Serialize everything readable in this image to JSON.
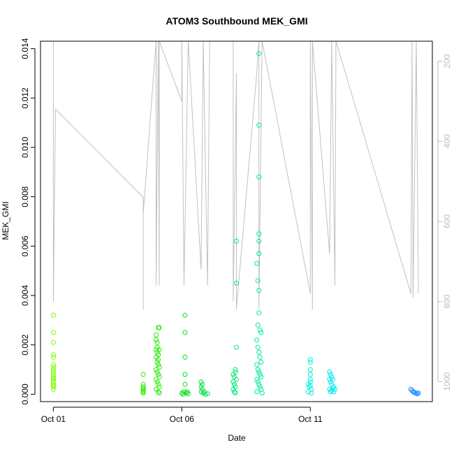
{
  "chart_data": {
    "type": "scatter",
    "title": "ATOM3 Southbound MEK_GMI",
    "xlabel": "Date",
    "ylabel": "MEK_GMI",
    "x_axis": {
      "type": "date",
      "range": [
        "2023-09-30T12:00",
        "2023-10-15T18:00"
      ],
      "ticks": [
        {
          "label": "Oct 01",
          "value": "2023-10-01T00:00"
        },
        {
          "label": "Oct 06",
          "value": "2023-10-06T00:00"
        },
        {
          "label": "Oct 11",
          "value": "2023-10-11T00:00"
        }
      ]
    },
    "y_left": {
      "range": [
        -0.0003,
        0.0143
      ],
      "ticks": [
        0.0,
        0.002,
        0.004,
        0.006,
        0.008,
        0.01,
        0.012,
        0.014
      ],
      "tick_labels": [
        "0.000",
        "0.002",
        "0.004",
        "0.006",
        "0.008",
        "0.010",
        "0.012",
        "0.014"
      ]
    },
    "y_right": {
      "range": [
        1050,
        150
      ],
      "reversed": true,
      "color": "#bdbdbd",
      "ticks": [
        200,
        400,
        600,
        800,
        1000
      ],
      "tick_labels": [
        "200",
        "400",
        "600",
        "800",
        "1000"
      ]
    },
    "grid": false,
    "series": [
      {
        "marker": "open-circle",
        "color": "#7cfc00",
        "points": [
          [
            "2023-10-01T00:00",
            0.0032
          ],
          [
            "2023-10-01T00:00",
            0.0025
          ],
          [
            "2023-10-01T00:00",
            0.0021
          ],
          [
            "2023-10-01T00:05",
            0.0016
          ],
          [
            "2023-10-01T00:05",
            0.0015
          ],
          [
            "2023-10-01T00:10",
            0.0012
          ],
          [
            "2023-10-01T00:05",
            0.0011
          ],
          [
            "2023-10-01T00:10",
            0.001
          ],
          [
            "2023-10-01T00:00",
            0.0009
          ],
          [
            "2023-10-01T00:05",
            0.0008
          ],
          [
            "2023-10-01T00:05",
            0.0007
          ],
          [
            "2023-10-01T00:10",
            0.0006
          ],
          [
            "2023-10-01T00:00",
            0.0005
          ],
          [
            "2023-10-01T00:05",
            0.0004
          ],
          [
            "2023-10-01T00:10",
            0.0003
          ],
          [
            "2023-10-01T00:05",
            0.0002
          ],
          [
            "2023-10-01T00:10",
            0.00035
          ],
          [
            "2023-10-01T00:00",
            0.00065
          ]
        ]
      },
      {
        "marker": "open-circle",
        "color": "#33ee00",
        "points": [
          [
            "2023-10-04T12:00",
            0.0008
          ],
          [
            "2023-10-04T12:00",
            0.0004
          ],
          [
            "2023-10-04T12:00",
            0.0003
          ],
          [
            "2023-10-04T12:00",
            0.0002
          ],
          [
            "2023-10-04T12:00",
            0.0001
          ],
          [
            "2023-10-04T12:00",
            5e-05
          ],
          [
            "2023-10-04T12:00",
            0.00025
          ],
          [
            "2023-10-04T12:00",
            0.00015
          ]
        ]
      },
      {
        "marker": "open-circle",
        "color": "#22ee00",
        "points": [
          [
            "2023-10-05T00:00",
            0.0024
          ],
          [
            "2023-10-05T00:00",
            0.0022
          ],
          [
            "2023-10-05T01:00",
            0.0021
          ],
          [
            "2023-10-05T02:00",
            0.0027
          ],
          [
            "2023-10-05T03:00",
            0.0027
          ],
          [
            "2023-10-05T00:00",
            0.0018
          ],
          [
            "2023-10-05T01:00",
            0.0017
          ],
          [
            "2023-10-05T02:00",
            0.0016
          ],
          [
            "2023-10-05T03:00",
            0.0018
          ],
          [
            "2023-10-05T00:00",
            0.0015
          ],
          [
            "2023-10-05T01:00",
            0.0013
          ],
          [
            "2023-10-05T02:00",
            0.0012
          ],
          [
            "2023-10-05T03:00",
            0.0011
          ],
          [
            "2023-10-05T00:00",
            0.001
          ],
          [
            "2023-10-05T01:00",
            0.0009
          ],
          [
            "2023-10-05T02:00",
            0.0008
          ],
          [
            "2023-10-05T03:00",
            0.0007
          ],
          [
            "2023-10-05T00:00",
            0.0006
          ],
          [
            "2023-10-05T01:00",
            0.0005
          ],
          [
            "2023-10-05T02:00",
            0.0004
          ],
          [
            "2023-10-05T03:00",
            0.0003
          ],
          [
            "2023-10-05T00:00",
            0.0002
          ],
          [
            "2023-10-05T02:00",
            0.0001
          ],
          [
            "2023-10-05T03:00",
            5e-05
          ],
          [
            "2023-10-05T01:00",
            0.0019
          ],
          [
            "2023-10-05T02:00",
            0.0014
          ]
        ]
      },
      {
        "marker": "open-circle",
        "color": "#00e020",
        "points": [
          [
            "2023-10-06T03:00",
            0.0032
          ],
          [
            "2023-10-06T03:00",
            0.0025
          ],
          [
            "2023-10-06T03:00",
            0.0015
          ],
          [
            "2023-10-06T03:00",
            0.0008
          ],
          [
            "2023-10-06T03:00",
            0.0004
          ],
          [
            "2023-10-06T00:00",
            5e-05
          ],
          [
            "2023-10-06T01:00",
            0.0
          ],
          [
            "2023-10-06T02:00",
            0.0001
          ],
          [
            "2023-10-06T04:00",
            5e-05
          ],
          [
            "2023-10-06T05:00",
            0.0001
          ],
          [
            "2023-10-06T06:00",
            2e-05
          ]
        ]
      },
      {
        "marker": "open-circle",
        "color": "#00e040",
        "points": [
          [
            "2023-10-06T18:00",
            0.0005
          ],
          [
            "2023-10-06T19:00",
            0.0004
          ],
          [
            "2023-10-06T18:00",
            0.0003
          ],
          [
            "2023-10-06T19:00",
            0.0002
          ],
          [
            "2023-10-06T18:00",
            0.0001
          ],
          [
            "2023-10-06T20:00",
            5e-05
          ],
          [
            "2023-10-06T22:00",
            0.0
          ],
          [
            "2023-10-07T00:00",
            2e-05
          ],
          [
            "2023-10-06T21:00",
            0.0001
          ]
        ]
      },
      {
        "marker": "open-circle",
        "color": "#00e878",
        "points": [
          [
            "2023-10-08T00:00",
            0.0008
          ],
          [
            "2023-10-08T01:00",
            0.0007
          ],
          [
            "2023-10-08T02:00",
            0.001
          ],
          [
            "2023-10-08T03:00",
            0.0019
          ],
          [
            "2023-10-08T03:00",
            0.0045
          ],
          [
            "2023-10-08T03:00",
            0.0062
          ],
          [
            "2023-10-08T00:00",
            0.0005
          ],
          [
            "2023-10-08T01:00",
            0.0004
          ],
          [
            "2023-10-08T02:00",
            0.0003
          ],
          [
            "2023-10-08T00:00",
            0.0002
          ],
          [
            "2023-10-08T01:00",
            0.0001
          ],
          [
            "2023-10-08T02:00",
            5e-05
          ],
          [
            "2023-10-08T03:00",
            0.0006
          ],
          [
            "2023-10-08T02:00",
            0.0009
          ]
        ]
      },
      {
        "marker": "open-circle",
        "color": "#00e8a0",
        "points": [
          [
            "2023-10-09T00:00",
            0.0138
          ],
          [
            "2023-10-09T00:00",
            0.0109
          ],
          [
            "2023-10-09T00:00",
            0.0088
          ],
          [
            "2023-10-09T00:00",
            0.0065
          ],
          [
            "2023-10-09T00:00",
            0.0062
          ],
          [
            "2023-10-09T00:00",
            0.0057
          ],
          [
            "2023-10-08T22:00",
            0.0053
          ],
          [
            "2023-10-08T23:00",
            0.0046
          ],
          [
            "2023-10-09T00:00",
            0.0042
          ],
          [
            "2023-10-09T00:00",
            0.0033
          ],
          [
            "2023-10-08T23:00",
            0.0028
          ],
          [
            "2023-10-09T01:00",
            0.0026
          ],
          [
            "2023-10-09T02:00",
            0.0025
          ],
          [
            "2023-10-08T22:00",
            0.0022
          ],
          [
            "2023-10-08T23:00",
            0.0019
          ],
          [
            "2023-10-09T00:00",
            0.0017
          ],
          [
            "2023-10-09T01:00",
            0.0015
          ],
          [
            "2023-10-09T02:00",
            0.0013
          ],
          [
            "2023-10-08T22:00",
            0.0012
          ],
          [
            "2023-10-08T23:00",
            0.001
          ],
          [
            "2023-10-09T00:00",
            0.0009
          ],
          [
            "2023-10-09T01:00",
            0.0008
          ],
          [
            "2023-10-09T02:00",
            0.0007
          ],
          [
            "2023-10-08T22:00",
            0.0006
          ],
          [
            "2023-10-08T23:00",
            0.0005
          ],
          [
            "2023-10-09T00:00",
            0.0004
          ],
          [
            "2023-10-09T01:00",
            0.0003
          ],
          [
            "2023-10-09T02:00",
            0.0002
          ],
          [
            "2023-10-08T22:00",
            0.0001
          ],
          [
            "2023-10-09T03:00",
            5e-05
          ]
        ]
      },
      {
        "marker": "open-circle",
        "color": "#00f0e0",
        "points": [
          [
            "2023-10-11T00:00",
            0.0014
          ],
          [
            "2023-10-11T00:00",
            0.0013
          ],
          [
            "2023-10-11T00:00",
            0.001
          ],
          [
            "2023-10-11T00:00",
            0.0008
          ],
          [
            "2023-10-11T00:00",
            0.0006
          ],
          [
            "2023-10-11T00:00",
            0.0005
          ],
          [
            "2023-10-10T22:00",
            0.0004
          ],
          [
            "2023-10-10T23:00",
            0.0003
          ],
          [
            "2023-10-11T01:00",
            0.0002
          ],
          [
            "2023-10-10T22:00",
            0.0001
          ],
          [
            "2023-10-11T01:00",
            5e-05
          ],
          [
            "2023-10-11T00:00",
            0.00035
          ]
        ]
      },
      {
        "marker": "open-circle",
        "color": "#00e8f0",
        "points": [
          [
            "2023-10-11T18:00",
            0.0009
          ],
          [
            "2023-10-11T19:00",
            0.0008
          ],
          [
            "2023-10-11T20:00",
            0.0007
          ],
          [
            "2023-10-11T18:00",
            0.0006
          ],
          [
            "2023-10-11T19:00",
            0.0005
          ],
          [
            "2023-10-11T20:00",
            0.0004
          ],
          [
            "2023-10-11T21:00",
            0.0006
          ],
          [
            "2023-10-11T22:00",
            0.0003
          ],
          [
            "2023-10-11T18:00",
            0.0002
          ],
          [
            "2023-10-11T19:00",
            0.0001
          ],
          [
            "2023-10-11T20:00",
            0.00015
          ],
          [
            "2023-10-11T21:00",
            0.00025
          ],
          [
            "2023-10-11T22:00",
            0.0001
          ],
          [
            "2023-10-11T23:00",
            0.0002
          ]
        ]
      },
      {
        "marker": "open-circle",
        "color": "#1e90ff",
        "points": [
          [
            "2023-10-14T22:00",
            0.0002
          ],
          [
            "2023-10-14T23:00",
            0.00015
          ],
          [
            "2023-10-15T00:00",
            0.0001
          ],
          [
            "2023-10-15T01:00",
            8e-05
          ],
          [
            "2023-10-15T02:00",
            5e-05
          ],
          [
            "2023-10-15T03:00",
            3e-05
          ],
          [
            "2023-10-15T04:00",
            2e-05
          ],
          [
            "2023-10-15T05:00",
            5e-05
          ]
        ]
      }
    ],
    "secondary_line": {
      "color": "#c0c0c0",
      "axis": "right",
      "points": [
        [
          "2023-10-01T00:00",
          500
        ],
        [
          "2023-10-01T00:00",
          150
        ],
        [
          "2023-10-01T00:00",
          800
        ],
        [
          "2023-10-01T02:00",
          320
        ],
        [
          "2023-10-04T12:00",
          540
        ],
        [
          "2023-10-04T12:00",
          820
        ],
        [
          "2023-10-04T12:00",
          580
        ],
        [
          "2023-10-05T00:00",
          150
        ],
        [
          "2023-10-05T00:00",
          760
        ],
        [
          "2023-10-05T02:00",
          150
        ],
        [
          "2023-10-05T03:00",
          760
        ],
        [
          "2023-10-05T03:00",
          150
        ],
        [
          "2023-10-06T00:00",
          300
        ],
        [
          "2023-10-06T00:00",
          150
        ],
        [
          "2023-10-06T02:00",
          760
        ],
        [
          "2023-10-06T06:00",
          150
        ],
        [
          "2023-10-06T18:00",
          720
        ],
        [
          "2023-10-06T20:00",
          150
        ],
        [
          "2023-10-07T00:00",
          760
        ],
        [
          "2023-10-07T02:00",
          150
        ],
        [
          "2023-10-08T00:00",
          150
        ],
        [
          "2023-10-08T00:00",
          800
        ],
        [
          "2023-10-08T03:00",
          230
        ],
        [
          "2023-10-08T03:00",
          820
        ],
        [
          "2023-10-08T22:00",
          230
        ],
        [
          "2023-10-09T00:00",
          150
        ],
        [
          "2023-10-09T00:00",
          820
        ],
        [
          "2023-10-09T03:00",
          150
        ],
        [
          "2023-10-11T00:00",
          780
        ],
        [
          "2023-10-11T00:00",
          150
        ],
        [
          "2023-10-11T02:00",
          820
        ],
        [
          "2023-10-11T02:00",
          150
        ],
        [
          "2023-10-11T18:00",
          680
        ],
        [
          "2023-10-11T20:00",
          150
        ],
        [
          "2023-10-11T23:00",
          760
        ],
        [
          "2023-10-12T00:00",
          150
        ],
        [
          "2023-10-14T22:00",
          780
        ],
        [
          "2023-10-14T23:00",
          150
        ],
        [
          "2023-10-15T00:00",
          790
        ],
        [
          "2023-10-15T03:00",
          150
        ],
        [
          "2023-10-15T05:00",
          780
        ]
      ]
    }
  }
}
